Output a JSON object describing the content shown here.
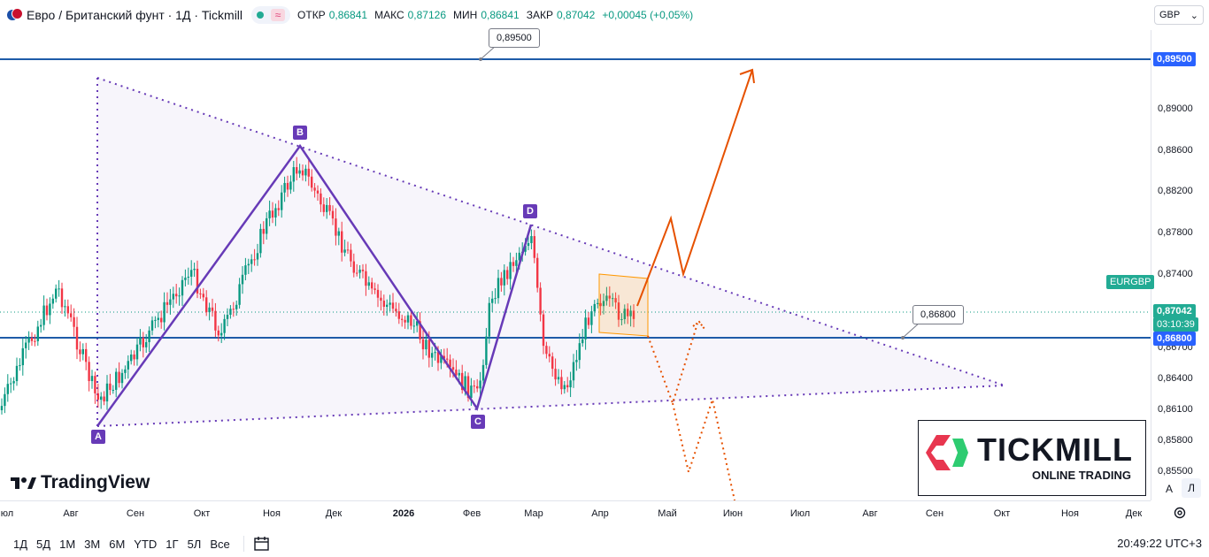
{
  "header": {
    "symbol_title": "Евро / Британский фунт · 1Д · Tickmill",
    "ohlc": [
      {
        "k": "ОТКР",
        "v": "0,86841"
      },
      {
        "k": "МАКС",
        "v": "0,87126"
      },
      {
        "k": "МИН",
        "v": "0,86841"
      },
      {
        "k": "ЗАКР",
        "v": "0,87042"
      },
      {
        "k": "",
        "v": "+0,00045 (+0,05%)"
      }
    ],
    "pill_symbol": "≈",
    "currency": "GBP"
  },
  "y_axis": {
    "ticks": [
      "0,89000",
      "0,88600",
      "0,88200",
      "0,87800",
      "0,87400",
      "0,86700",
      "0,86400",
      "0,86100",
      "0,85800",
      "0,85500"
    ],
    "labels": {
      "level_high": "0,89500",
      "price": "0,87042",
      "countdown": "03:10:39",
      "level_low": "0,86800",
      "symbol_badge": "EURGBP"
    }
  },
  "x_axis": {
    "ticks": [
      "Июл",
      "Авг",
      "Сен",
      "Окт",
      "Ноя",
      "Дек",
      "2026",
      "Фев",
      "Мар",
      "Апр",
      "Май",
      "Июн",
      "Июл",
      "Авг",
      "Сен",
      "Окт",
      "Ноя",
      "Дек"
    ]
  },
  "annotations": {
    "points": [
      "A",
      "B",
      "C",
      "D"
    ],
    "callout_high": "0,89500",
    "callout_low": "0,86800"
  },
  "colors": {
    "up": "#089981",
    "down": "#f23645",
    "level_line": "#2962ff",
    "pattern": "#673ab7",
    "forecast": "#e65100"
  },
  "branding": {
    "tradingview": "TradingView",
    "tickmill_name": "TICKMILL",
    "tickmill_sub": "ONLINE TRADING"
  },
  "bottom_bar": {
    "ranges": [
      "1Д",
      "5Д",
      "1М",
      "3М",
      "6М",
      "YTD",
      "1Г",
      "5Л",
      "Все"
    ],
    "clock": "20:49:22 UTC+3",
    "scale_auto": "A",
    "scale_log": "Л"
  }
}
